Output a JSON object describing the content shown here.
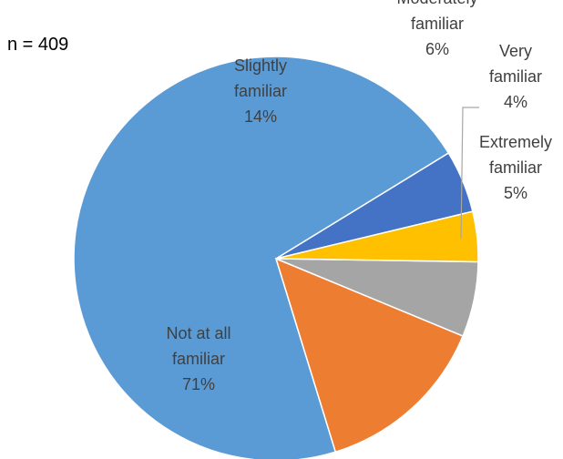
{
  "chart_data": {
    "type": "pie",
    "annotation": "n = 409",
    "slices": [
      {
        "label_lines": [
          "Extremely",
          "familiar",
          "5%"
        ],
        "value": 5,
        "color": "#4472C4"
      },
      {
        "label_lines": [
          "Not at all",
          "familiar",
          "71%"
        ],
        "value": 71,
        "color": "#5B9BD5"
      },
      {
        "label_lines": [
          "Slightly",
          "familiar",
          "14%"
        ],
        "value": 14,
        "color": "#ED7D31"
      },
      {
        "label_lines": [
          "Moderately",
          "familiar",
          "6%"
        ],
        "value": 6,
        "color": "#A5A5A5"
      },
      {
        "label_lines": [
          "Very",
          "familiar",
          "4%"
        ],
        "value": 4,
        "color": "#FFC000"
      }
    ],
    "start_direction": "slightly above 3 o'clock",
    "direction": "counterclockwise"
  }
}
